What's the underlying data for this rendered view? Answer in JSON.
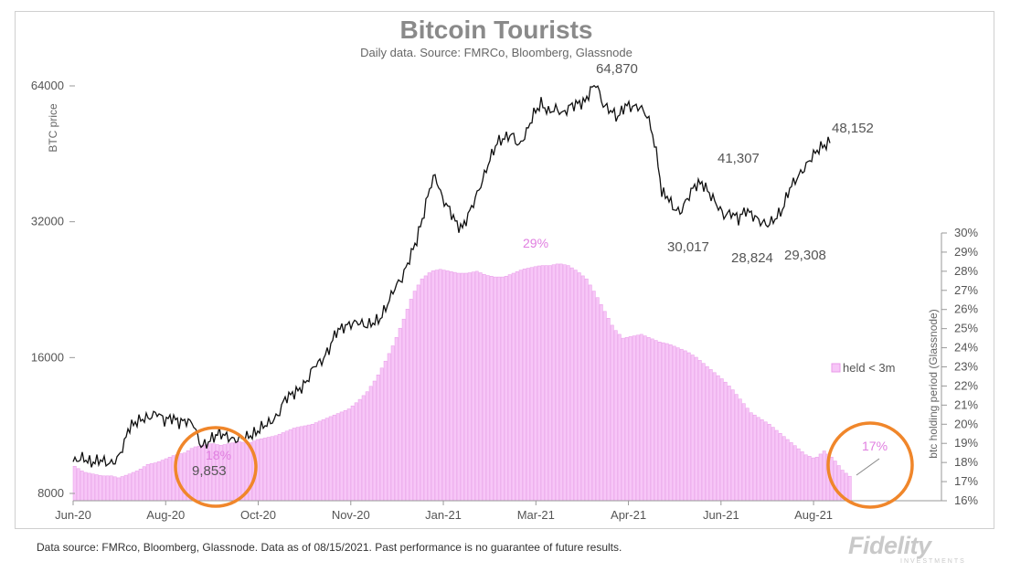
{
  "chart_data": {
    "type": "bar+line",
    "title": "Bitcoin Tourists",
    "subtitle": "Daily data.  Source: FMRCo, Bloomberg, Glassnode",
    "y_left_label": "BTC price",
    "y_left_scale": "log2",
    "y_left_ticks": [
      "64000",
      "32000",
      "16000",
      "8000"
    ],
    "y_left_range": [
      8000,
      70000
    ],
    "y_right_label": "btc holding period (Glassnode)",
    "y_right_ticks": [
      "30%",
      "29%",
      "28%",
      "27%",
      "26%",
      "25%",
      "24%",
      "23%",
      "22%",
      "21%",
      "20%",
      "19%",
      "18%",
      "17%",
      "16%"
    ],
    "y_right_range": [
      16,
      30
    ],
    "x_ticks": [
      "Jun-20",
      "Aug-20",
      "Oct-20",
      "Nov-20",
      "Jan-21",
      "Mar-21",
      "Apr-21",
      "Jun-21",
      "Aug-21"
    ],
    "legend": "held < 3m",
    "legend_position": "right",
    "series": [
      {
        "name": "BTC price",
        "kind": "line",
        "points": [
          [
            0,
            9400
          ],
          [
            5,
            9600
          ],
          [
            10,
            9350
          ],
          [
            15,
            9500
          ],
          [
            20,
            9300
          ],
          [
            24,
            9500
          ],
          [
            28,
            10300
          ],
          [
            30,
            11100
          ],
          [
            34,
            11500
          ],
          [
            38,
            11700
          ],
          [
            42,
            11800
          ],
          [
            46,
            12100
          ],
          [
            50,
            11600
          ],
          [
            54,
            11800
          ],
          [
            58,
            11500
          ],
          [
            62,
            11600
          ],
          [
            66,
            11400
          ],
          [
            68,
            10700
          ],
          [
            70,
            10200
          ],
          [
            73,
            10300
          ],
          [
            76,
            10600
          ],
          [
            80,
            10900
          ],
          [
            84,
            10700
          ],
          [
            88,
            10500
          ],
          [
            92,
            10600
          ],
          [
            96,
            10700
          ],
          [
            100,
            10900
          ],
          [
            104,
            11300
          ],
          [
            108,
            11500
          ],
          [
            112,
            11900
          ],
          [
            116,
            13000
          ],
          [
            120,
            13300
          ],
          [
            124,
            13600
          ],
          [
            128,
            14200
          ],
          [
            132,
            15400
          ],
          [
            136,
            15700
          ],
          [
            140,
            16700
          ],
          [
            144,
            18300
          ],
          [
            148,
            18700
          ],
          [
            152,
            19000
          ],
          [
            156,
            19200
          ],
          [
            160,
            18800
          ],
          [
            164,
            19100
          ],
          [
            168,
            19500
          ],
          [
            172,
            21000
          ],
          [
            176,
            22900
          ],
          [
            180,
            24000
          ],
          [
            184,
            26500
          ],
          [
            188,
            29200
          ],
          [
            192,
            33500
          ],
          [
            195,
            38000
          ],
          [
            198,
            40500
          ],
          [
            202,
            36000
          ],
          [
            206,
            34000
          ],
          [
            210,
            31500
          ],
          [
            213,
            31000
          ],
          [
            216,
            33000
          ],
          [
            220,
            36000
          ],
          [
            224,
            39500
          ],
          [
            228,
            44000
          ],
          [
            232,
            48000
          ],
          [
            236,
            49000
          ],
          [
            240,
            50000
          ],
          [
            244,
            47000
          ],
          [
            248,
            50500
          ],
          [
            252,
            55500
          ],
          [
            256,
            58500
          ],
          [
            260,
            56000
          ],
          [
            264,
            57000
          ],
          [
            268,
            55500
          ],
          [
            272,
            57800
          ],
          [
            276,
            58500
          ],
          [
            280,
            59000
          ],
          [
            283,
            62500
          ],
          [
            286,
            64870
          ],
          [
            290,
            58000
          ],
          [
            294,
            56500
          ],
          [
            298,
            54500
          ],
          [
            302,
            58000
          ],
          [
            306,
            57500
          ],
          [
            310,
            57500
          ],
          [
            314,
            55000
          ],
          [
            317,
            50000
          ],
          [
            320,
            43000
          ],
          [
            322,
            37000
          ],
          [
            325,
            36500
          ],
          [
            328,
            34500
          ],
          [
            332,
            33500
          ],
          [
            336,
            36000
          ],
          [
            340,
            38500
          ],
          [
            344,
            39000
          ],
          [
            348,
            37000
          ],
          [
            352,
            35000
          ],
          [
            356,
            33000
          ],
          [
            360,
            33500
          ],
          [
            364,
            32500
          ],
          [
            368,
            34000
          ],
          [
            372,
            33000
          ],
          [
            376,
            32000
          ],
          [
            380,
            31500
          ],
          [
            384,
            32500
          ],
          [
            388,
            34000
          ],
          [
            392,
            38000
          ],
          [
            396,
            40000
          ],
          [
            400,
            42000
          ],
          [
            404,
            44500
          ],
          [
            408,
            46500
          ],
          [
            412,
            47500
          ],
          [
            414,
            48152
          ]
        ]
      },
      {
        "name": "held < 3m",
        "kind": "bar",
        "points": [
          [
            0,
            17.8
          ],
          [
            5,
            17.5
          ],
          [
            10,
            17.4
          ],
          [
            15,
            17.3
          ],
          [
            20,
            17.3
          ],
          [
            24,
            17.2
          ],
          [
            30,
            17.4
          ],
          [
            35,
            17.6
          ],
          [
            40,
            17.9
          ],
          [
            45,
            18.0
          ],
          [
            50,
            18.2
          ],
          [
            55,
            18.4
          ],
          [
            60,
            18.5
          ],
          [
            65,
            18.8
          ],
          [
            70,
            18.9
          ],
          [
            75,
            19.0
          ],
          [
            80,
            18.9
          ],
          [
            85,
            19.0
          ],
          [
            90,
            19.1
          ],
          [
            95,
            19.0
          ],
          [
            100,
            19.2
          ],
          [
            105,
            19.3
          ],
          [
            110,
            19.4
          ],
          [
            115,
            19.6
          ],
          [
            120,
            19.8
          ],
          [
            125,
            19.9
          ],
          [
            130,
            20.0
          ],
          [
            135,
            20.2
          ],
          [
            140,
            20.4
          ],
          [
            145,
            20.6
          ],
          [
            150,
            20.8
          ],
          [
            155,
            21.2
          ],
          [
            160,
            21.7
          ],
          [
            165,
            22.4
          ],
          [
            170,
            23.3
          ],
          [
            175,
            24.3
          ],
          [
            180,
            25.5
          ],
          [
            185,
            26.8
          ],
          [
            190,
            27.6
          ],
          [
            195,
            28.0
          ],
          [
            200,
            28.1
          ],
          [
            205,
            28.0
          ],
          [
            210,
            27.9
          ],
          [
            215,
            27.9
          ],
          [
            220,
            28.0
          ],
          [
            225,
            27.8
          ],
          [
            230,
            27.7
          ],
          [
            235,
            27.7
          ],
          [
            240,
            27.9
          ],
          [
            245,
            28.1
          ],
          [
            250,
            28.2
          ],
          [
            255,
            28.3
          ],
          [
            260,
            28.3
          ],
          [
            265,
            28.4
          ],
          [
            270,
            28.3
          ],
          [
            275,
            28.0
          ],
          [
            280,
            27.6
          ],
          [
            285,
            26.8
          ],
          [
            290,
            25.9
          ],
          [
            295,
            25.0
          ],
          [
            300,
            24.5
          ],
          [
            305,
            24.6
          ],
          [
            310,
            24.7
          ],
          [
            315,
            24.5
          ],
          [
            320,
            24.3
          ],
          [
            325,
            24.2
          ],
          [
            330,
            24.0
          ],
          [
            335,
            23.8
          ],
          [
            340,
            23.5
          ],
          [
            345,
            23.1
          ],
          [
            350,
            22.7
          ],
          [
            355,
            22.3
          ],
          [
            360,
            21.8
          ],
          [
            365,
            21.2
          ],
          [
            370,
            20.6
          ],
          [
            375,
            20.3
          ],
          [
            380,
            20.0
          ],
          [
            385,
            19.6
          ],
          [
            390,
            19.2
          ],
          [
            395,
            18.8
          ],
          [
            400,
            18.4
          ],
          [
            405,
            18.2
          ],
          [
            410,
            18.6
          ],
          [
            415,
            18.2
          ],
          [
            420,
            17.6
          ],
          [
            425,
            17.2
          ]
        ]
      }
    ],
    "annotations": [
      {
        "text": "64,870",
        "color": "#555555"
      },
      {
        "text": "48,152",
        "color": "#555555"
      },
      {
        "text": "41,307",
        "color": "#555555"
      },
      {
        "text": "30,017",
        "color": "#555555"
      },
      {
        "text": "28,824",
        "color": "#555555"
      },
      {
        "text": "29,308",
        "color": "#555555"
      },
      {
        "text": "9,853",
        "color": "#555555"
      },
      {
        "text": "18%",
        "color": "#e07ee0"
      },
      {
        "text": "29%",
        "color": "#e07ee0"
      },
      {
        "text": "17%",
        "color": "#e07ee0"
      }
    ],
    "colors": {
      "price_line": "#111111",
      "bars_fill": "#f7c6f7",
      "bars_stroke": "#e899e8",
      "circle": "#f0862a"
    }
  },
  "footer": "Data source: FMRco, Bloomberg, Glassnode. Data as of 08/15/2021. Past performance is no guarantee of future results.",
  "logo": {
    "name": "Fidelity",
    "sub": "INVESTMENTS"
  }
}
